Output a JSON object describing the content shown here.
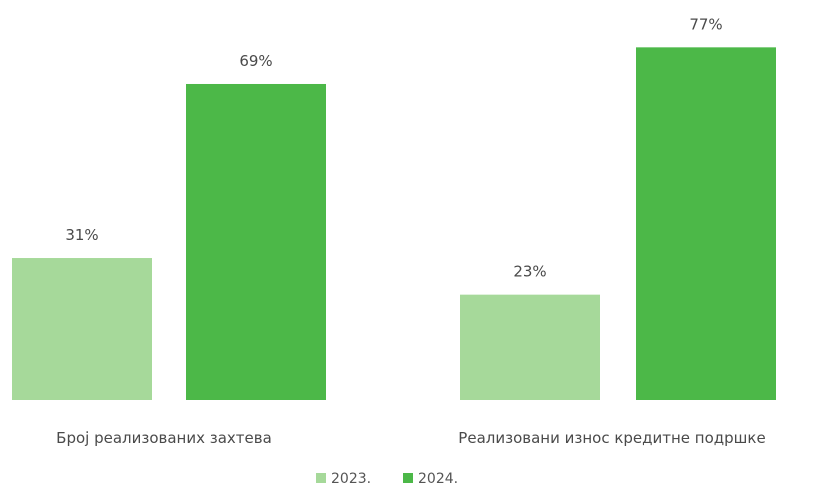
{
  "chart_data": {
    "type": "bar",
    "categories": [
      "Број реализованих захтева",
      "Реализовани износ кредитне подршке"
    ],
    "series": [
      {
        "name": "2023.",
        "values": [
          31,
          23
        ],
        "labels": [
          "31%",
          "23%"
        ],
        "color": "#a6d99a"
      },
      {
        "name": "2024.",
        "values": [
          69,
          77
        ],
        "labels": [
          "69%",
          "77%"
        ],
        "color": "#4cb848"
      }
    ],
    "ylim": [
      0,
      80
    ],
    "grid": false,
    "legend_position": "bottom-center"
  }
}
